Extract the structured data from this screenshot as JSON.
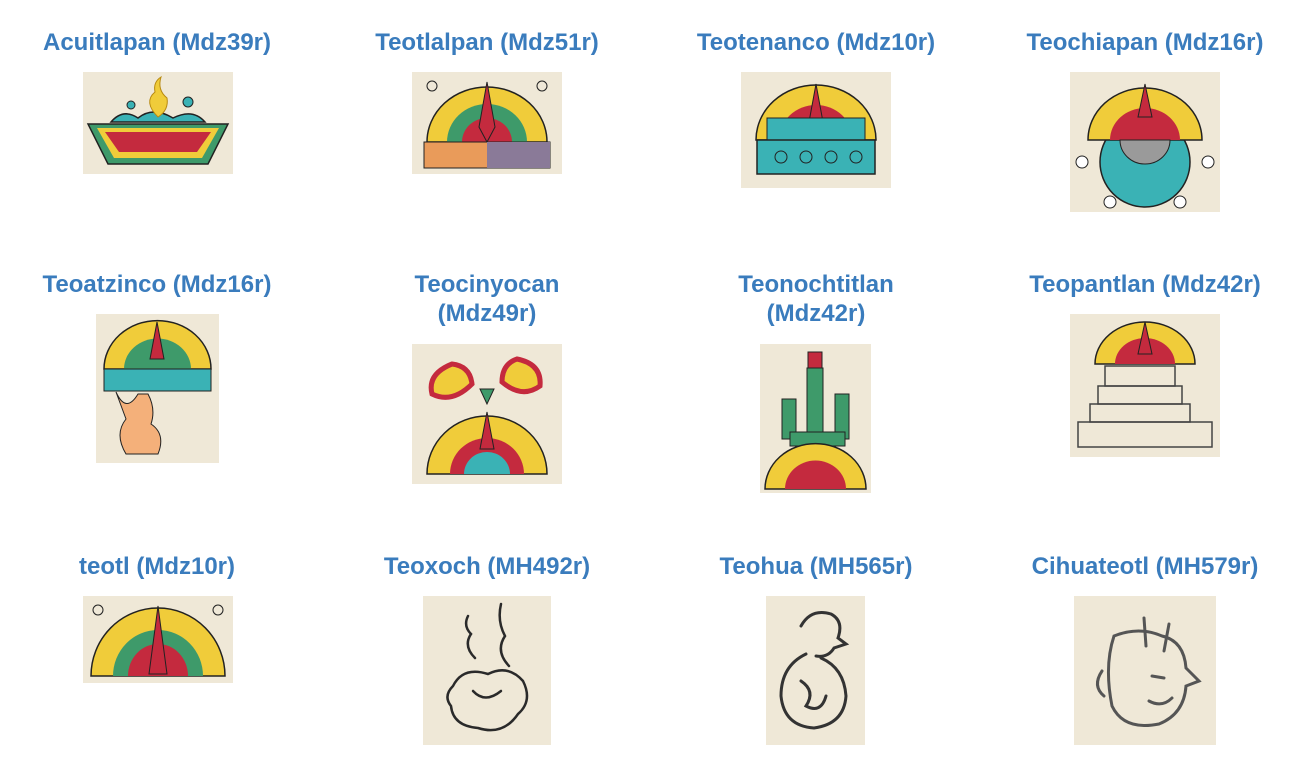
{
  "gallery": {
    "items": [
      {
        "title": "Acuitlapan (Mdz39r)",
        "glyph": "water-flames-glyph"
      },
      {
        "title": "Teotlalpan (Mdz51r)",
        "glyph": "sun-earth-glyph"
      },
      {
        "title": "Teotenanco (Mdz10r)",
        "glyph": "sun-wall-glyph"
      },
      {
        "title": "Teochiapan (Mdz16r)",
        "glyph": "sun-chia-glyph"
      },
      {
        "title": "Teoatzinco (Mdz16r)",
        "glyph": "sun-water-leg-glyph"
      },
      {
        "title_lines": [
          "Teocinyocan",
          "(Mdz49r)"
        ],
        "glyph": "maize-sun-glyph"
      },
      {
        "title_lines": [
          "Teonochtitlan",
          "(Mdz42r)"
        ],
        "glyph": "cactus-sun-glyph"
      },
      {
        "title": "Teopantlan (Mdz42r)",
        "glyph": "sun-pyramid-glyph"
      },
      {
        "title": "teotl (Mdz10r)",
        "glyph": "sun-glyph"
      },
      {
        "title": "Teoxoch (MH492r)",
        "glyph": "sketch-flower-glyph"
      },
      {
        "title": "Teohua (MH565r)",
        "glyph": "sketch-head-glyph"
      },
      {
        "title": "Cihuateotl (MH579r)",
        "glyph": "sketch-face-glyph"
      }
    ]
  },
  "colors": {
    "title": "#3a7cbd",
    "parchment": "#efe8d7",
    "yellow": "#f0cc3a",
    "red": "#c42a3e",
    "teal": "#3ab2b5",
    "green": "#3e9a6a",
    "ink": "#2a2a2a"
  }
}
